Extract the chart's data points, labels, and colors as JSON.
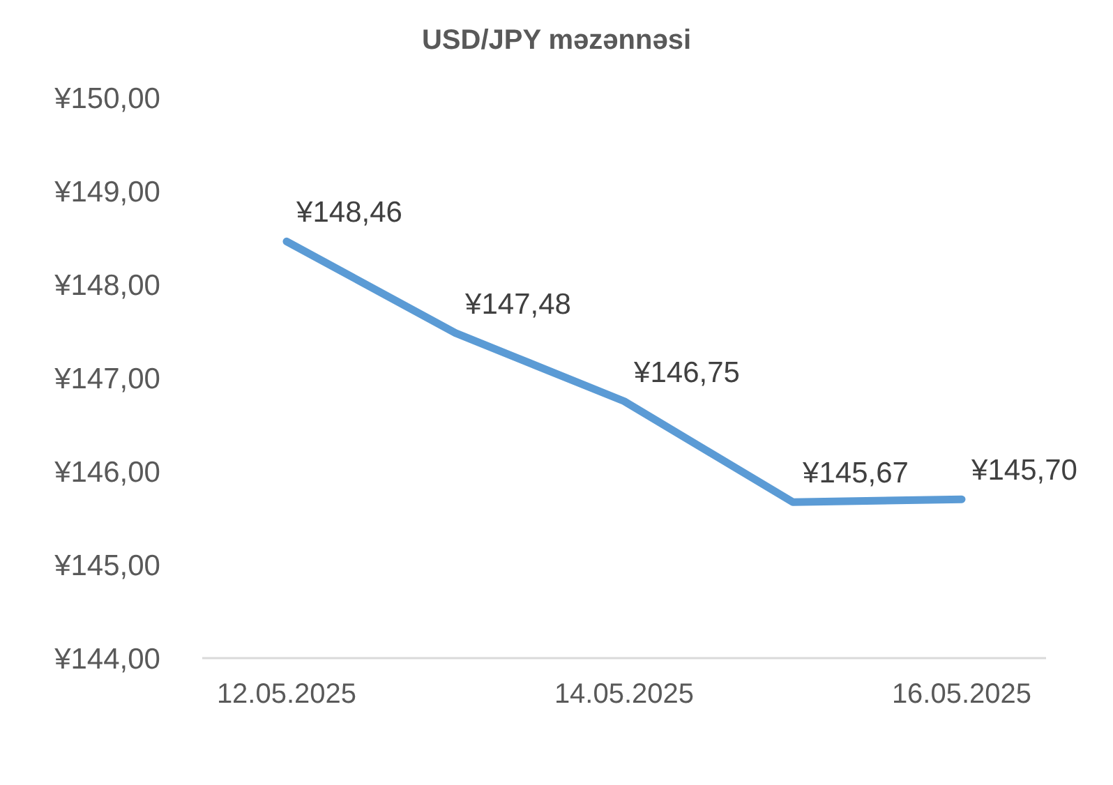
{
  "chart_data": {
    "type": "line",
    "title": "USD/JPY məzənnəsi",
    "categories": [
      "12.05.2025",
      null,
      "14.05.2025",
      null,
      "16.05.2025"
    ],
    "values": [
      148.46,
      147.48,
      146.75,
      145.67,
      145.7
    ],
    "value_labels": [
      "¥148,46",
      "¥147,48",
      "¥146,75",
      "¥145,67",
      "¥145,70"
    ],
    "color": "#5b9bd5",
    "ylim": [
      144,
      150
    ],
    "yticks": [
      {
        "value": 144,
        "label": "¥144,00"
      },
      {
        "value": 145,
        "label": "¥145,00"
      },
      {
        "value": 146,
        "label": "¥146,00"
      },
      {
        "value": 147,
        "label": "¥147,00"
      },
      {
        "value": 148,
        "label": "¥148,00"
      },
      {
        "value": 149,
        "label": "¥149,00"
      },
      {
        "value": 150,
        "label": "¥150,00"
      }
    ]
  }
}
